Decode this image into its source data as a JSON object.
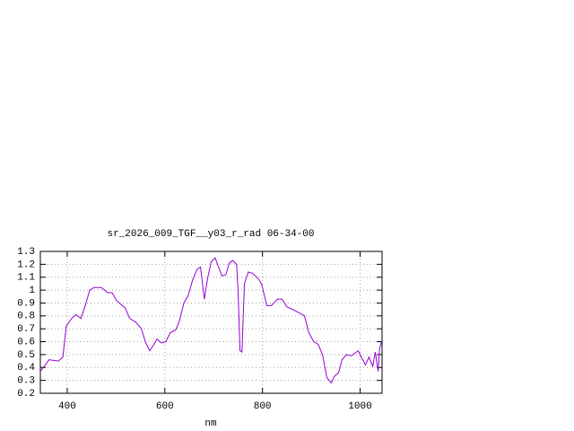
{
  "chart_data": {
    "type": "line",
    "title": "sr_2026_009_TGF__y03_r_rad 06-34-00",
    "x_label": "nm",
    "xlim": [
      345,
      1045
    ],
    "xticks": [
      400,
      600,
      800,
      1000
    ],
    "ylim": [
      0.2,
      1.3
    ],
    "yticks": [
      0.2,
      0.3,
      0.4,
      0.5,
      0.6,
      0.7,
      0.8,
      0.9,
      1,
      1.1,
      1.2,
      1.3
    ],
    "grid": true,
    "x": [
      345,
      363,
      382,
      391,
      398,
      409,
      418,
      428,
      437,
      446,
      455,
      470,
      483,
      492,
      501,
      519,
      528,
      541,
      552,
      560,
      569,
      576,
      584,
      593,
      602,
      611,
      622,
      629,
      639,
      648,
      657,
      666,
      673,
      681,
      688,
      695,
      703,
      710,
      717,
      725,
      732,
      739,
      747,
      750,
      754,
      758,
      763,
      771,
      780,
      791,
      798,
      809,
      818,
      831,
      840,
      850,
      862,
      877,
      886,
      895,
      905,
      914,
      923,
      932,
      941,
      947,
      956,
      963,
      972,
      982,
      989,
      996,
      1004,
      1011,
      1018,
      1026,
      1031,
      1037,
      1040,
      1044
    ],
    "series": [
      {
        "color": "#9400d3",
        "values": [
          0.37,
          0.46,
          0.45,
          0.48,
          0.72,
          0.78,
          0.81,
          0.78,
          0.88,
          1.0,
          1.02,
          1.02,
          0.98,
          0.98,
          0.92,
          0.86,
          0.78,
          0.75,
          0.7,
          0.6,
          0.53,
          0.57,
          0.62,
          0.59,
          0.6,
          0.67,
          0.69,
          0.75,
          0.9,
          0.96,
          1.08,
          1.16,
          1.18,
          0.93,
          1.1,
          1.22,
          1.25,
          1.18,
          1.11,
          1.12,
          1.21,
          1.23,
          1.2,
          1.0,
          0.53,
          0.52,
          1.05,
          1.14,
          1.13,
          1.09,
          1.05,
          0.88,
          0.88,
          0.93,
          0.93,
          0.87,
          0.85,
          0.82,
          0.8,
          0.67,
          0.6,
          0.58,
          0.5,
          0.32,
          0.28,
          0.33,
          0.36,
          0.46,
          0.5,
          0.49,
          0.51,
          0.53,
          0.47,
          0.42,
          0.48,
          0.41,
          0.52,
          0.37,
          0.55,
          0.6
        ]
      }
    ]
  }
}
